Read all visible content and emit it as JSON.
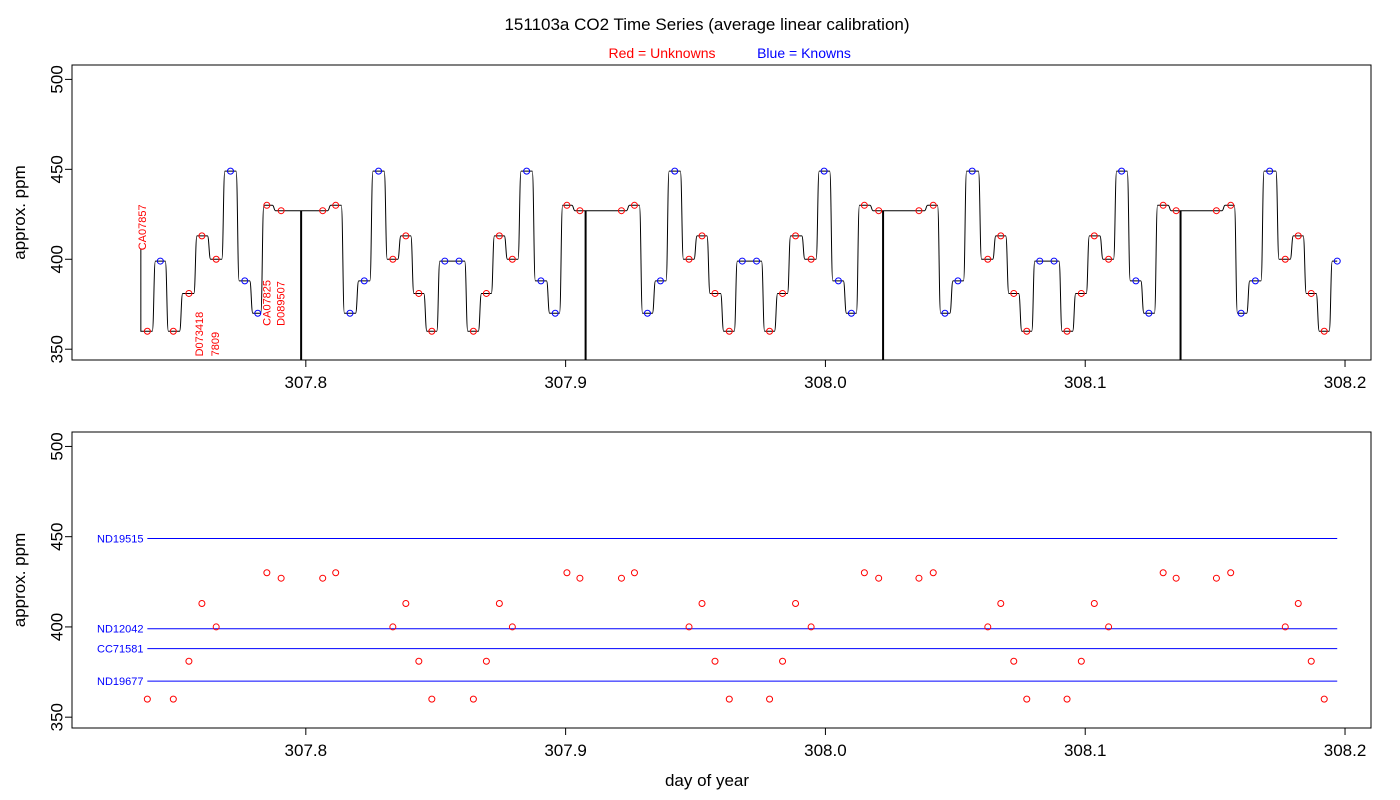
{
  "chart_data": {
    "title": "151103a   CO2 Time Series (average linear calibration)",
    "legend": {
      "unknowns": "Red = Unknowns",
      "knowns": "Blue = Knowns"
    },
    "colors": {
      "unknowns": "#ff0000",
      "knowns": "#0000ff",
      "trace": "#000000",
      "reference_lines": "#0000ff"
    },
    "xlabel": "day of year",
    "xlim": [
      307.71,
      308.21
    ],
    "xticks": [
      "307.8",
      "307.9",
      "308.0",
      "308.1",
      "308.2"
    ],
    "panels": [
      {
        "type": "line",
        "ylabel": "approx. ppm",
        "ylim": [
          344,
          508
        ],
        "yticks": [
          "350",
          "400",
          "450",
          "500"
        ],
        "grid": false,
        "annotations": [
          {
            "text": "CA07857",
            "x": 307.7385,
            "y": 405
          },
          {
            "text": "D073418",
            "x": 307.7605,
            "y": 346
          },
          {
            "text": "7809",
            "x": 307.7665,
            "y": 346
          },
          {
            "text": "CA07825",
            "x": 307.7865,
            "y": 363
          },
          {
            "text": "D089507",
            "x": 307.7918,
            "y": 363
          }
        ],
        "unknowns": [
          [
            307.739,
            360
          ],
          [
            307.749,
            360
          ],
          [
            307.755,
            381
          ],
          [
            307.76,
            413
          ],
          [
            307.7655,
            400
          ],
          [
            307.785,
            430
          ],
          [
            307.7905,
            427
          ],
          [
            307.8065,
            427
          ],
          [
            307.8115,
            430
          ],
          [
            307.8335,
            400
          ],
          [
            307.8385,
            413
          ],
          [
            307.8435,
            381
          ],
          [
            307.8485,
            360
          ],
          [
            307.8645,
            360
          ],
          [
            307.8695,
            381
          ],
          [
            307.8745,
            413
          ],
          [
            307.8795,
            400
          ],
          [
            307.9005,
            430
          ],
          [
            307.9055,
            427
          ],
          [
            307.9215,
            427
          ],
          [
            307.9265,
            430
          ],
          [
            307.9475,
            400
          ],
          [
            307.9525,
            413
          ],
          [
            307.9575,
            381
          ],
          [
            307.963,
            360
          ],
          [
            307.9785,
            360
          ],
          [
            307.9835,
            381
          ],
          [
            307.9885,
            413
          ],
          [
            307.9945,
            400
          ],
          [
            308.015,
            430
          ],
          [
            308.0205,
            427
          ],
          [
            308.036,
            427
          ],
          [
            308.0415,
            430
          ],
          [
            308.0625,
            400
          ],
          [
            308.0675,
            413
          ],
          [
            308.0725,
            381
          ],
          [
            308.0775,
            360
          ],
          [
            308.093,
            360
          ],
          [
            308.0985,
            381
          ],
          [
            308.1035,
            413
          ],
          [
            308.109,
            400
          ],
          [
            308.13,
            430
          ],
          [
            308.135,
            427
          ],
          [
            308.1505,
            427
          ],
          [
            308.156,
            430
          ],
          [
            308.177,
            400
          ],
          [
            308.182,
            413
          ],
          [
            308.187,
            381
          ],
          [
            308.192,
            360
          ]
        ],
        "knowns": [
          [
            307.744,
            399
          ],
          [
            307.771,
            449
          ],
          [
            307.7765,
            388
          ],
          [
            307.7815,
            370
          ],
          [
            307.817,
            370
          ],
          [
            307.8225,
            388
          ],
          [
            307.828,
            449
          ],
          [
            307.8535,
            399
          ],
          [
            307.859,
            399
          ],
          [
            307.885,
            449
          ],
          [
            307.8905,
            388
          ],
          [
            307.896,
            370
          ],
          [
            307.9315,
            370
          ],
          [
            307.9365,
            388
          ],
          [
            307.942,
            449
          ],
          [
            307.968,
            399
          ],
          [
            307.9735,
            399
          ],
          [
            307.9995,
            449
          ],
          [
            308.005,
            388
          ],
          [
            308.01,
            370
          ],
          [
            308.046,
            370
          ],
          [
            308.051,
            388
          ],
          [
            308.0565,
            449
          ],
          [
            308.0825,
            399
          ],
          [
            308.088,
            399
          ],
          [
            308.114,
            449
          ],
          [
            308.1195,
            388
          ],
          [
            308.1245,
            370
          ],
          [
            308.16,
            370
          ],
          [
            308.1655,
            388
          ],
          [
            308.171,
            449
          ],
          [
            308.197,
            399
          ]
        ],
        "trace_breaks": [
          307.798,
          307.9075,
          307.9175,
          308.022,
          308.032,
          308.1365,
          308.1465
        ]
      },
      {
        "type": "scatter",
        "ylabel": "approx. ppm",
        "ylim": [
          344,
          508
        ],
        "yticks": [
          "350",
          "400",
          "450",
          "500"
        ],
        "grid": false,
        "reference_lines": [
          {
            "label": "ND19515",
            "y": 449
          },
          {
            "label": "ND12042",
            "y": 399
          },
          {
            "label": "CC71581",
            "y": 388
          },
          {
            "label": "ND19677",
            "y": 370
          }
        ],
        "reference_x_range": [
          307.739,
          308.197
        ]
      }
    ]
  }
}
